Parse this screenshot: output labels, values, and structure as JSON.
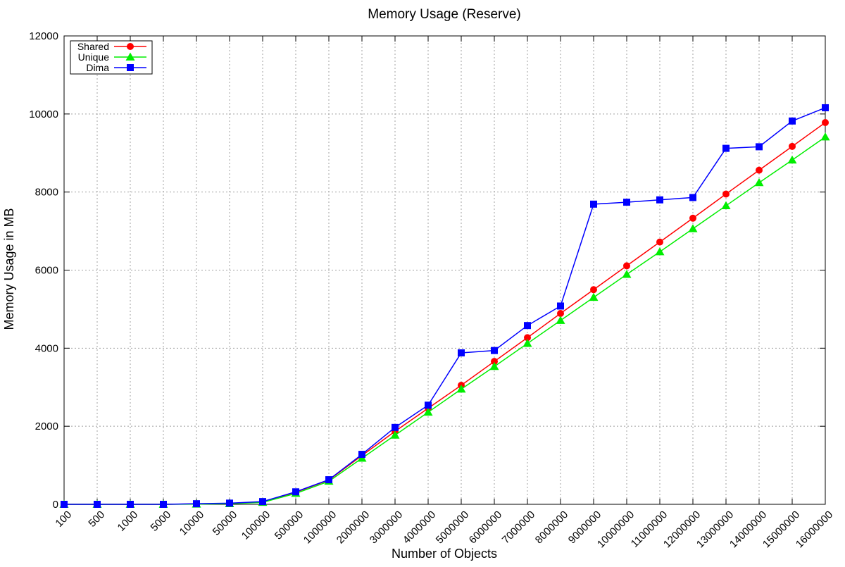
{
  "chart_data": {
    "type": "line",
    "title": "Memory Usage (Reserve)",
    "xlabel": "Number of Objects",
    "ylabel": "Memory Usage in MB",
    "categories": [
      "100",
      "500",
      "1000",
      "5000",
      "10000",
      "50000",
      "100000",
      "500000",
      "1000000",
      "2000000",
      "3000000",
      "4000000",
      "5000000",
      "6000000",
      "7000000",
      "8000000",
      "9000000",
      "10000000",
      "11000000",
      "12000000",
      "13000000",
      "14000000",
      "15000000",
      "16000000"
    ],
    "ylim": [
      0,
      12000
    ],
    "yticks": [
      "0",
      "2000",
      "4000",
      "6000",
      "8000",
      "10000",
      "12000"
    ],
    "grid": true,
    "legend_position": "top-left",
    "series": [
      {
        "name": "Shared",
        "color": "#ff0000",
        "marker": "circle",
        "values": [
          0,
          0,
          0,
          0,
          10,
          20,
          60,
          310,
          620,
          1250,
          1870,
          2460,
          3050,
          3660,
          4270,
          4890,
          5500,
          6110,
          6720,
          7330,
          7950,
          8560,
          9170,
          9780
        ]
      },
      {
        "name": "Unique",
        "color": "#00ee00",
        "marker": "triangle",
        "values": [
          0,
          0,
          0,
          0,
          5,
          15,
          50,
          280,
          590,
          1180,
          1770,
          2360,
          2950,
          3530,
          4120,
          4710,
          5300,
          5890,
          6470,
          7060,
          7650,
          8240,
          8820,
          9410
        ]
      },
      {
        "name": "Dima",
        "color": "#0000ff",
        "marker": "square",
        "values": [
          0,
          0,
          0,
          0,
          15,
          30,
          70,
          320,
          630,
          1280,
          1970,
          2540,
          3880,
          3940,
          4580,
          5080,
          7690,
          7740,
          7800,
          7860,
          9120,
          9160,
          9820,
          10160
        ]
      }
    ]
  }
}
